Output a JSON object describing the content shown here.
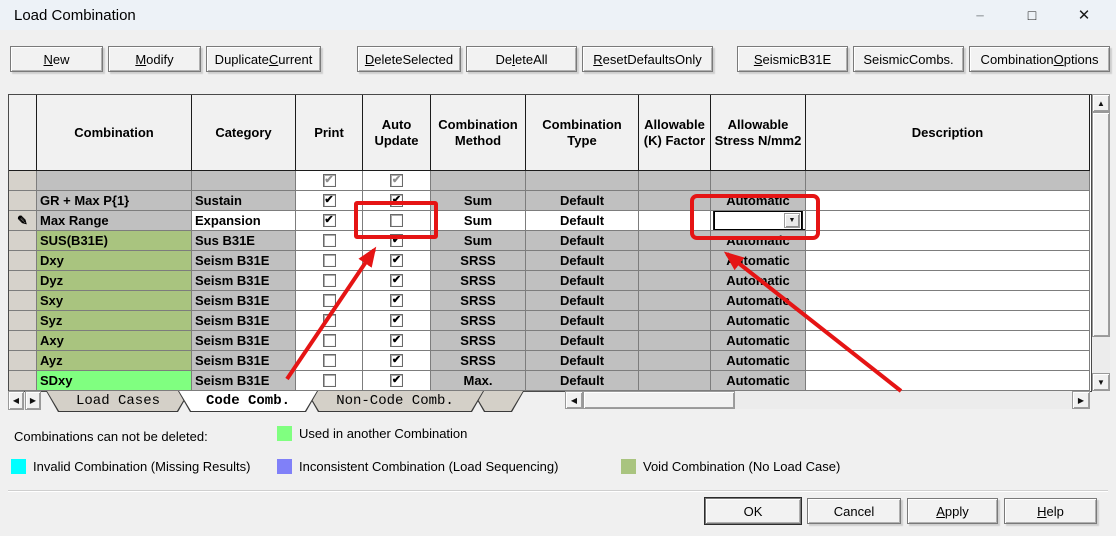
{
  "window": {
    "title": "Load Combination"
  },
  "icons": {
    "minimize": "–",
    "maximize": "□",
    "close": "✕",
    "check": "✔",
    "dropdown": "▼",
    "up-arrow": "▲",
    "down-arrow": "▼",
    "left-arrow": "◀",
    "right-arrow": "▶",
    "pencil": "✎"
  },
  "toolbar": {
    "buttons": [
      {
        "label": "New",
        "u": 0
      },
      {
        "label": "Modify",
        "u": 0
      },
      {
        "label": "Duplicate Current",
        "u": 10
      },
      {
        "label": "Delete Selected",
        "u": 0
      },
      {
        "label": "Delete All",
        "u": 2
      },
      {
        "label": "Reset Defaults Only",
        "u": 0
      },
      {
        "label": "Seismic B31E",
        "u": 0
      },
      {
        "label": "Seismic Combs.",
        "u": -1
      },
      {
        "label": "Combination Options",
        "u": 12
      }
    ]
  },
  "table": {
    "headers": [
      "",
      "Combination",
      "Category",
      "Print",
      "Auto Update",
      "Combination Method",
      "Combination Type",
      "Allowable (K) Factor",
      "Allowable Stress N/mm2",
      "Description"
    ],
    "rows": [
      {
        "combination": "",
        "category": "",
        "print": true,
        "auto": true,
        "disabled": true,
        "method": "",
        "type": "",
        "k": "",
        "stress": "",
        "desc": "",
        "comb_bg": "gray_cell"
      },
      {
        "combination": "GR + Max P{1}",
        "category": "Sustain",
        "print": true,
        "auto": true,
        "method": "Sum",
        "type": "Default",
        "k": "",
        "stress": "Automatic",
        "desc": "",
        "comb_bg": "gray_cell"
      },
      {
        "combination": "Max Range",
        "category": "Expansion",
        "print": true,
        "auto": false,
        "method": "Sum",
        "type": "Default",
        "k": "",
        "stress": "",
        "desc": "",
        "comb_bg": "gray_cell",
        "editing": true,
        "stress_widget": "combobox"
      },
      {
        "combination": "SUS(B31E)",
        "category": "Sus B31E",
        "print": false,
        "auto": true,
        "method": "Sum",
        "type": "Default",
        "k": "",
        "stress": "Automatic",
        "desc": "",
        "comb_bg": "olive_cell"
      },
      {
        "combination": "Dxy",
        "category": "Seism B31E",
        "print": false,
        "auto": true,
        "method": "SRSS",
        "type": "Default",
        "k": "",
        "stress": "Automatic",
        "desc": "",
        "comb_bg": "olive_cell"
      },
      {
        "combination": "Dyz",
        "category": "Seism B31E",
        "print": false,
        "auto": true,
        "method": "SRSS",
        "type": "Default",
        "k": "",
        "stress": "Automatic",
        "desc": "",
        "comb_bg": "olive_cell"
      },
      {
        "combination": "Sxy",
        "category": "Seism B31E",
        "print": false,
        "auto": true,
        "method": "SRSS",
        "type": "Default",
        "k": "",
        "stress": "Automatic",
        "desc": "",
        "comb_bg": "olive_cell"
      },
      {
        "combination": "Syz",
        "category": "Seism B31E",
        "print": false,
        "auto": true,
        "method": "SRSS",
        "type": "Default",
        "k": "",
        "stress": "Automatic",
        "desc": "",
        "comb_bg": "olive_cell"
      },
      {
        "combination": "Axy",
        "category": "Seism B31E",
        "print": false,
        "auto": true,
        "method": "SRSS",
        "type": "Default",
        "k": "",
        "stress": "Automatic",
        "desc": "",
        "comb_bg": "olive_cell"
      },
      {
        "combination": "Ayz",
        "category": "Seism B31E",
        "print": false,
        "auto": true,
        "method": "SRSS",
        "type": "Default",
        "k": "",
        "stress": "Automatic",
        "desc": "",
        "comb_bg": "olive_cell"
      },
      {
        "combination": "SDxy",
        "category": "Seism B31E",
        "print": false,
        "auto": true,
        "method": "Max.",
        "type": "Default",
        "k": "",
        "stress": "Automatic",
        "desc": "",
        "comb_bg": "green_cell"
      }
    ]
  },
  "tabs": {
    "items": [
      {
        "label": "Load Cases",
        "active": false
      },
      {
        "label": "Code Comb.",
        "active": true
      },
      {
        "label": "Non-Code Comb.",
        "active": false
      }
    ]
  },
  "legend": {
    "note": "Combinations can not be deleted:",
    "items": [
      {
        "color": "#80ff80",
        "label": "Used in another Combination"
      },
      {
        "color": "#00ffff",
        "label": "Invalid Combination (Missing Results)"
      },
      {
        "color": "#8080f8",
        "label": "Inconsistent Combination (Load Sequencing)"
      },
      {
        "color": "#a9c47f",
        "label": "Void Combination (No Load Case)"
      }
    ]
  },
  "footer": {
    "buttons": [
      {
        "label": "OK",
        "u": -1,
        "default": true
      },
      {
        "label": "Cancel",
        "u": -1
      },
      {
        "label": "Apply",
        "u": 0
      },
      {
        "label": "Help",
        "u": 0
      }
    ]
  },
  "colors": {
    "gray_cell": "#c0c0c0",
    "olive_cell": "#a9c47f",
    "green_cell": "#80ff80",
    "white_cell": "#ffffff",
    "selector_cell": "#d6d2cb",
    "annotation_red": "#e51414"
  }
}
